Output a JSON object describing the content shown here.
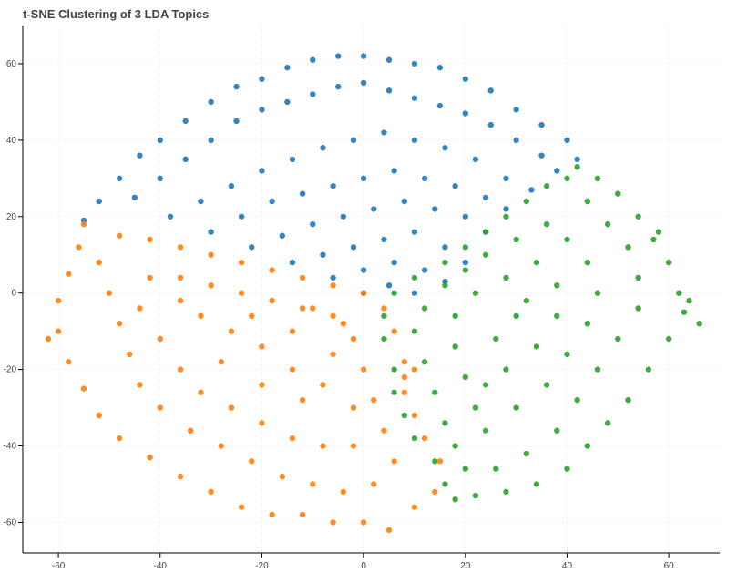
{
  "chart_data": {
    "type": "scatter",
    "title": "t-SNE Clustering of 3 LDA Topics",
    "xlabel": "",
    "ylabel": "",
    "xlim": [
      -67,
      70
    ],
    "ylim": [
      -68,
      70
    ],
    "x_ticks": [
      -60,
      -40,
      -20,
      0,
      20,
      40,
      60
    ],
    "y_ticks": [
      60,
      40,
      20,
      0,
      -20,
      -40,
      -60
    ],
    "grid": true,
    "series": [
      {
        "color": "#1f77b4",
        "points": [
          [
            -55,
            19
          ],
          [
            -52,
            24
          ],
          [
            -48,
            30
          ],
          [
            -44,
            36
          ],
          [
            -40,
            40
          ],
          [
            -35,
            45
          ],
          [
            -30,
            50
          ],
          [
            -25,
            54
          ],
          [
            -20,
            56
          ],
          [
            -15,
            59
          ],
          [
            -10,
            61
          ],
          [
            -5,
            62
          ],
          [
            0,
            62
          ],
          [
            5,
            61
          ],
          [
            10,
            60
          ],
          [
            15,
            59
          ],
          [
            20,
            56
          ],
          [
            25,
            53
          ],
          [
            30,
            48
          ],
          [
            35,
            44
          ],
          [
            40,
            40
          ],
          [
            42,
            35
          ],
          [
            -45,
            25
          ],
          [
            -40,
            30
          ],
          [
            -35,
            35
          ],
          [
            -30,
            40
          ],
          [
            -25,
            45
          ],
          [
            -20,
            48
          ],
          [
            -15,
            50
          ],
          [
            -10,
            52
          ],
          [
            -5,
            54
          ],
          [
            0,
            55
          ],
          [
            5,
            53
          ],
          [
            10,
            51
          ],
          [
            15,
            49
          ],
          [
            20,
            47
          ],
          [
            25,
            44
          ],
          [
            30,
            40
          ],
          [
            35,
            36
          ],
          [
            38,
            32
          ],
          [
            -38,
            20
          ],
          [
            -32,
            24
          ],
          [
            -26,
            28
          ],
          [
            -20,
            32
          ],
          [
            -14,
            35
          ],
          [
            -8,
            38
          ],
          [
            -2,
            40
          ],
          [
            4,
            42
          ],
          [
            10,
            40
          ],
          [
            16,
            38
          ],
          [
            22,
            35
          ],
          [
            28,
            30
          ],
          [
            33,
            27
          ],
          [
            -30,
            16
          ],
          [
            -24,
            20
          ],
          [
            -18,
            24
          ],
          [
            -12,
            26
          ],
          [
            -6,
            28
          ],
          [
            0,
            30
          ],
          [
            6,
            32
          ],
          [
            12,
            30
          ],
          [
            18,
            28
          ],
          [
            24,
            25
          ],
          [
            28,
            22
          ],
          [
            -22,
            12
          ],
          [
            -16,
            15
          ],
          [
            -10,
            18
          ],
          [
            -4,
            20
          ],
          [
            2,
            22
          ],
          [
            8,
            24
          ],
          [
            14,
            22
          ],
          [
            20,
            20
          ],
          [
            24,
            16
          ],
          [
            -14,
            8
          ],
          [
            -8,
            10
          ],
          [
            -2,
            12
          ],
          [
            4,
            14
          ],
          [
            10,
            16
          ],
          [
            16,
            12
          ],
          [
            20,
            8
          ],
          [
            -6,
            4
          ],
          [
            0,
            6
          ],
          [
            6,
            8
          ],
          [
            12,
            6
          ],
          [
            16,
            3
          ],
          [
            0,
            0
          ],
          [
            5,
            2
          ],
          [
            10,
            0
          ]
        ]
      },
      {
        "color": "#ff7f0e",
        "points": [
          [
            -55,
            18
          ],
          [
            -56,
            12
          ],
          [
            -58,
            5
          ],
          [
            -60,
            -2
          ],
          [
            -60,
            -10
          ],
          [
            -62,
            -12
          ],
          [
            -58,
            -18
          ],
          [
            -55,
            -25
          ],
          [
            -52,
            -32
          ],
          [
            -48,
            -38
          ],
          [
            -42,
            -43
          ],
          [
            -36,
            -48
          ],
          [
            -30,
            -52
          ],
          [
            -24,
            -56
          ],
          [
            -18,
            -58
          ],
          [
            -12,
            -58
          ],
          [
            -6,
            -60
          ],
          [
            0,
            -60
          ],
          [
            5,
            -62
          ],
          [
            10,
            -56
          ],
          [
            14,
            -52
          ],
          [
            15,
            -44
          ],
          [
            12,
            -38
          ],
          [
            10,
            -32
          ],
          [
            8,
            -26
          ],
          [
            8,
            -18
          ],
          [
            6,
            -10
          ],
          [
            4,
            -4
          ],
          [
            0,
            0
          ],
          [
            -6,
            2
          ],
          [
            -12,
            4
          ],
          [
            -18,
            6
          ],
          [
            -24,
            8
          ],
          [
            -30,
            10
          ],
          [
            -36,
            12
          ],
          [
            -42,
            14
          ],
          [
            -48,
            15
          ],
          [
            -52,
            8
          ],
          [
            -50,
            0
          ],
          [
            -48,
            -8
          ],
          [
            -46,
            -16
          ],
          [
            -44,
            -24
          ],
          [
            -40,
            -30
          ],
          [
            -34,
            -36
          ],
          [
            -28,
            -40
          ],
          [
            -22,
            -44
          ],
          [
            -16,
            -48
          ],
          [
            -10,
            -50
          ],
          [
            -4,
            -52
          ],
          [
            2,
            -50
          ],
          [
            6,
            -44
          ],
          [
            4,
            -36
          ],
          [
            2,
            -28
          ],
          [
            0,
            -20
          ],
          [
            -2,
            -12
          ],
          [
            -6,
            -6
          ],
          [
            -12,
            -4
          ],
          [
            -18,
            -2
          ],
          [
            -24,
            0
          ],
          [
            -30,
            2
          ],
          [
            -36,
            4
          ],
          [
            -42,
            4
          ],
          [
            -44,
            -4
          ],
          [
            -40,
            -12
          ],
          [
            -36,
            -20
          ],
          [
            -32,
            -26
          ],
          [
            -26,
            -30
          ],
          [
            -20,
            -34
          ],
          [
            -14,
            -38
          ],
          [
            -8,
            -40
          ],
          [
            -2,
            -40
          ],
          [
            -2,
            -30
          ],
          [
            -8,
            -24
          ],
          [
            -14,
            -20
          ],
          [
            -20,
            -14
          ],
          [
            -26,
            -10
          ],
          [
            -32,
            -6
          ],
          [
            -36,
            -2
          ],
          [
            -28,
            -18
          ],
          [
            -20,
            -24
          ],
          [
            -12,
            -28
          ],
          [
            -6,
            -16
          ],
          [
            -14,
            -10
          ],
          [
            -22,
            -6
          ],
          [
            -10,
            -4
          ],
          [
            -4,
            -8
          ],
          [
            8,
            -22
          ],
          [
            10,
            -20
          ]
        ]
      },
      {
        "color": "#2ca02c",
        "points": [
          [
            42,
            33
          ],
          [
            46,
            30
          ],
          [
            50,
            26
          ],
          [
            54,
            20
          ],
          [
            57,
            14
          ],
          [
            60,
            8
          ],
          [
            62,
            0
          ],
          [
            63,
            -5
          ],
          [
            60,
            -12
          ],
          [
            56,
            -20
          ],
          [
            52,
            -28
          ],
          [
            48,
            -34
          ],
          [
            44,
            -40
          ],
          [
            40,
            -46
          ],
          [
            34,
            -50
          ],
          [
            28,
            -52
          ],
          [
            22,
            -53
          ],
          [
            18,
            -54
          ],
          [
            16,
            -50
          ],
          [
            14,
            -44
          ],
          [
            10,
            -38
          ],
          [
            8,
            -32
          ],
          [
            6,
            -26
          ],
          [
            6,
            -20
          ],
          [
            4,
            -12
          ],
          [
            4,
            -6
          ],
          [
            6,
            0
          ],
          [
            10,
            4
          ],
          [
            16,
            8
          ],
          [
            20,
            12
          ],
          [
            24,
            16
          ],
          [
            28,
            20
          ],
          [
            32,
            24
          ],
          [
            36,
            28
          ],
          [
            40,
            30
          ],
          [
            44,
            24
          ],
          [
            48,
            18
          ],
          [
            52,
            12
          ],
          [
            54,
            4
          ],
          [
            54,
            -4
          ],
          [
            50,
            -12
          ],
          [
            46,
            -20
          ],
          [
            42,
            -28
          ],
          [
            38,
            -36
          ],
          [
            32,
            -42
          ],
          [
            26,
            -46
          ],
          [
            20,
            -46
          ],
          [
            18,
            -40
          ],
          [
            16,
            -34
          ],
          [
            14,
            -26
          ],
          [
            12,
            -18
          ],
          [
            10,
            -10
          ],
          [
            12,
            -4
          ],
          [
            16,
            2
          ],
          [
            20,
            6
          ],
          [
            24,
            10
          ],
          [
            30,
            14
          ],
          [
            36,
            18
          ],
          [
            40,
            14
          ],
          [
            44,
            8
          ],
          [
            46,
            0
          ],
          [
            44,
            -8
          ],
          [
            40,
            -16
          ],
          [
            36,
            -24
          ],
          [
            30,
            -30
          ],
          [
            24,
            -36
          ],
          [
            22,
            -30
          ],
          [
            20,
            -22
          ],
          [
            18,
            -14
          ],
          [
            18,
            -6
          ],
          [
            22,
            0
          ],
          [
            28,
            4
          ],
          [
            34,
            8
          ],
          [
            38,
            2
          ],
          [
            38,
            -6
          ],
          [
            34,
            -14
          ],
          [
            28,
            -20
          ],
          [
            24,
            -24
          ],
          [
            26,
            -12
          ],
          [
            30,
            -6
          ],
          [
            32,
            -2
          ],
          [
            66,
            -8
          ],
          [
            64,
            -2
          ],
          [
            58,
            16
          ]
        ]
      }
    ]
  }
}
